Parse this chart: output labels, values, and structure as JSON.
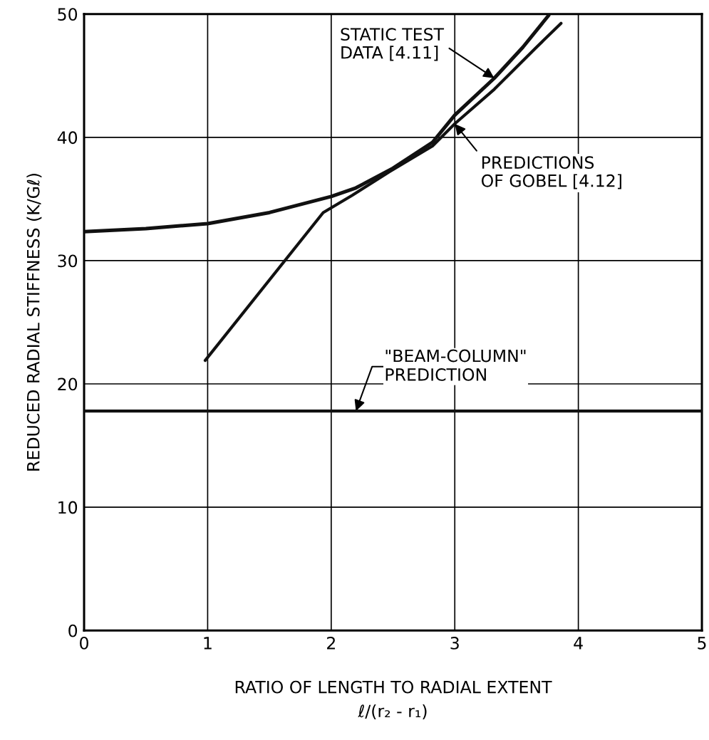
{
  "chart_data": {
    "type": "line",
    "xlabel": "RATIO OF LENGTH TO RADIAL EXTENT\nℓ/(r₂ - r₁)",
    "ylabel": "REDUCED RADIAL STIFFNESS (K/Gℓ)",
    "series": [
      {
        "name": "STATIC TEST\nDATA [4.11]",
        "color": "#111111",
        "x": [
          0,
          0.5,
          1,
          1.5,
          2,
          2.2,
          2.5,
          2.82,
          3.0,
          3.32,
          3.55,
          3.76
        ],
        "values": [
          32.35,
          32.6,
          33.0,
          33.9,
          35.2,
          35.9,
          37.5,
          39.6,
          41.8,
          44.8,
          47.3,
          49.9
        ]
      },
      {
        "name": "PREDICTIONS\nOF GOBEL [4.12]",
        "color": "#111111",
        "x": [
          0.98,
          1.935,
          2.17,
          2.47,
          2.82,
          3.0,
          3.32,
          3.65,
          3.86
        ],
        "values": [
          21.9,
          33.9,
          35.3,
          37.2,
          39.3,
          41.1,
          43.9,
          47.2,
          49.25
        ]
      }
    ],
    "ref_lines": [
      {
        "axis": "y",
        "value": 17.8,
        "label": "\"BEAM-COLUMN\"\nPREDICTION",
        "color": "#111111"
      }
    ],
    "xlim": [
      0,
      5
    ],
    "ylim": [
      0,
      50
    ],
    "xticks": [
      0,
      1,
      2,
      3,
      4,
      5
    ],
    "yticks": [
      0,
      10,
      20,
      30,
      40,
      50
    ],
    "grid": true,
    "legend": false,
    "marker": "none",
    "line_style": "solid"
  }
}
